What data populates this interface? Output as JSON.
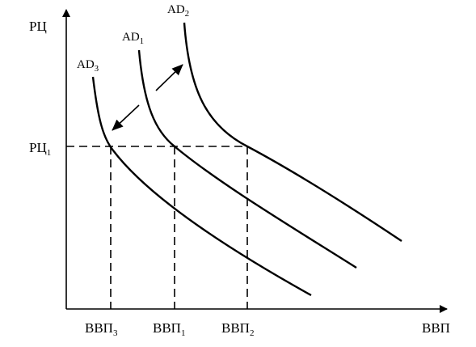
{
  "axes": {
    "y_label": "РЦ",
    "x_label": "ВВП"
  },
  "price_level": {
    "text": "РЦ",
    "sub": "1"
  },
  "outputs": [
    {
      "text": "ВВП",
      "sub": "3"
    },
    {
      "text": "ВВП",
      "sub": "1"
    },
    {
      "text": "ВВП",
      "sub": "2"
    }
  ],
  "curves": [
    {
      "text": "AD",
      "sub": "3"
    },
    {
      "text": "AD",
      "sub": "1"
    },
    {
      "text": "AD",
      "sub": "2"
    }
  ]
}
